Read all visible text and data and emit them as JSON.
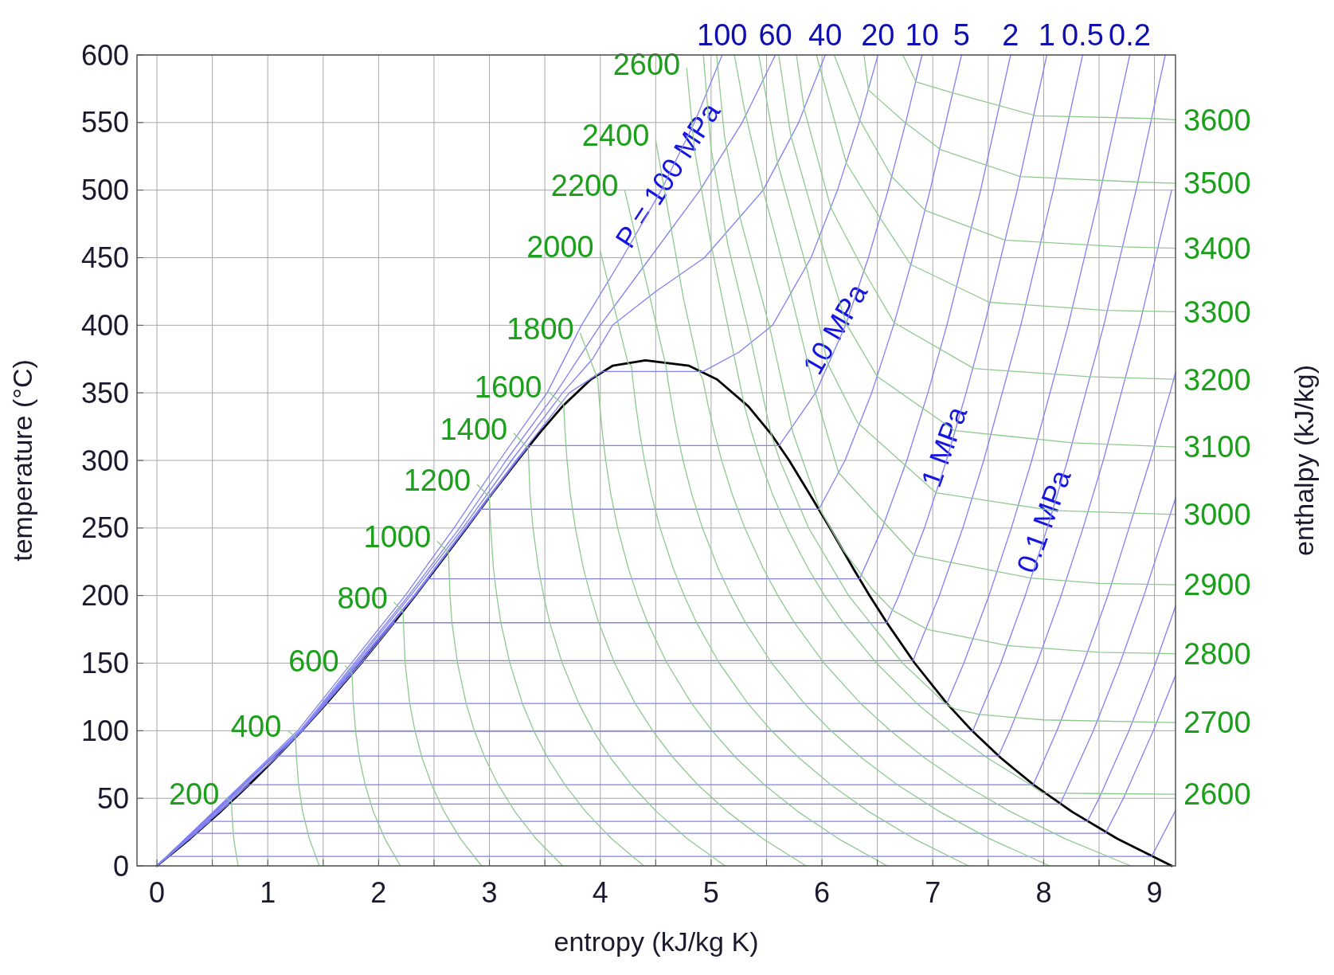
{
  "chart_data": {
    "type": "line",
    "xlabel": "entropy (kJ/kg K)",
    "ylabel": "temperature (°C)",
    "y2label": "enthalpy (kJ/kg)",
    "xlim": [
      -0.18,
      9.19
    ],
    "ylim": [
      0,
      600
    ],
    "xticks": [
      0,
      {
        "value": 0.5,
        "label": null
      },
      1,
      {
        "value": 1.5,
        "label": null
      },
      2,
      {
        "value": 2.5,
        "label": null
      },
      3,
      {
        "value": 3.5,
        "label": null
      },
      4,
      {
        "value": 4.5,
        "label": null
      },
      5,
      {
        "value": 5.5,
        "label": null
      },
      6,
      {
        "value": 6.5,
        "label": null
      },
      7,
      {
        "value": 7.5,
        "label": null
      },
      8,
      {
        "value": 8.5,
        "label": null
      },
      9
    ],
    "yticks": [
      0,
      50,
      100,
      150,
      200,
      250,
      300,
      350,
      400,
      450,
      500,
      550,
      600
    ],
    "grid": true,
    "annotations": [
      "P = 100 MPa",
      "10 MPa",
      "1 MPa",
      "0.1 MPa"
    ],
    "series": [
      {
        "color": "#000000",
        "x": [
          0,
          0.297,
          0.572,
          0.831,
          1.075,
          1.307,
          1.528,
          1.842,
          2.139,
          2.331,
          2.517,
          2.793,
          3.019,
          3.255,
          3.449,
          3.659,
          3.915,
          4.111,
          4.407,
          4.801,
          5.053,
          5.336,
          5.537,
          5.704,
          5.89,
          6.072,
          6.283,
          6.43,
          6.585,
          6.837,
          7.129,
          7.354,
          7.612,
          7.909,
          8.257,
          8.666,
          9.156
        ],
        "values": [
          0,
          20,
          40,
          60,
          80,
          100,
          120,
          150,
          180,
          200,
          220,
          250,
          275,
          300,
          320,
          340,
          360,
          370,
          374,
          370,
          360,
          340,
          320,
          300,
          275,
          250,
          220,
          200,
          180,
          150,
          120,
          100,
          80,
          60,
          40,
          20,
          0
        ]
      },
      {
        "name": "100",
        "color": "#8080f4",
        "x": [
          0,
          1.27,
          2.24,
          2.68,
          3.09,
          3.52,
          3.83,
          4.2,
          4.55,
          4.85,
          5.1
        ],
        "values": [
          0,
          100,
          200,
          250,
          300,
          350,
          400,
          450,
          500,
          550,
          600
        ]
      },
      {
        "name": "60",
        "color": "#8080f4",
        "x": [
          0,
          1.29,
          2.27,
          2.73,
          3.15,
          3.6,
          4.0,
          4.45,
          4.9,
          5.28,
          5.58
        ],
        "values": [
          0,
          100,
          200,
          250,
          300,
          350,
          400,
          450,
          500,
          550,
          600
        ]
      },
      {
        "name": "40",
        "color": "#8080f4",
        "x": [
          0,
          1.3,
          2.29,
          2.76,
          3.2,
          3.66,
          3.93,
          4.11,
          4.5,
          4.94,
          5.47,
          5.79,
          6.03
        ],
        "values": [
          0,
          100,
          200,
          250,
          300,
          350,
          375,
          400,
          425,
          450,
          500,
          550,
          600
        ]
      },
      {
        "name": "20",
        "color": "#8080f4",
        "x": [
          0,
          1.3,
          2.32,
          2.78,
          3.24,
          3.72,
          4.015,
          4.927,
          5.25,
          5.554,
          5.902,
          6.14,
          6.335,
          6.505
        ],
        "values": [
          0,
          100,
          200,
          250,
          300,
          350,
          365.8,
          365.8,
          380,
          400,
          450,
          500,
          550,
          600
        ]
      },
      {
        "name": "10",
        "color": "#8080f4",
        "x": [
          0,
          1.305,
          2.32,
          2.79,
          3.25,
          3.36,
          5.614,
          5.943,
          6.213,
          6.419,
          6.597,
          6.756,
          6.903
        ],
        "values": [
          0,
          100,
          200,
          250,
          300,
          311,
          311,
          350,
          400,
          450,
          500,
          550,
          600
        ]
      },
      {
        "name": "5",
        "color": "#8080f4",
        "x": [
          0,
          1.307,
          2.33,
          2.79,
          2.921,
          5.973,
          6.208,
          6.449,
          6.646,
          6.819,
          6.976,
          7.259
        ],
        "values": [
          0,
          100,
          200,
          250,
          263.9,
          263.9,
          300,
          350,
          400,
          450,
          500,
          600
        ]
      },
      {
        "name": "2",
        "color": "#8080f4",
        "x": [
          0,
          1.307,
          2.33,
          2.447,
          6.34,
          6.545,
          6.766,
          6.956,
          7.127,
          7.432,
          7.702
        ],
        "values": [
          0,
          100,
          200,
          212.4,
          212.4,
          250,
          300,
          350,
          400,
          500,
          600
        ]
      },
      {
        "name": "1",
        "color": "#8080f4",
        "x": [
          0,
          1.307,
          1.842,
          2.139,
          6.585,
          6.694,
          6.925,
          7.123,
          7.301,
          7.465,
          7.762,
          8.029
        ],
        "values": [
          0,
          100,
          150,
          179.9,
          179.9,
          200,
          250,
          300,
          350,
          400,
          500,
          600
        ]
      },
      {
        "name": "0.5",
        "color": "#8080f4",
        "x": [
          0,
          1.307,
          1.842,
          1.861,
          6.821,
          7.059,
          7.271,
          7.46,
          7.794,
          8.087,
          8.352
        ],
        "values": [
          0,
          100,
          150,
          151.8,
          151.8,
          200,
          250,
          300,
          400,
          500,
          600
        ]
      },
      {
        "name": "0.2",
        "color": "#8080f4",
        "x": [
          0,
          1.307,
          1.528,
          7.127,
          7.28,
          7.507,
          7.709,
          7.893,
          8.222,
          8.513,
          8.777
        ],
        "values": [
          0,
          100,
          120.2,
          120.2,
          150,
          200,
          250,
          300,
          400,
          500,
          600
        ]
      },
      {
        "color": "#8080f4",
        "x": [
          0,
          1.075,
          1.303,
          7.359,
          7.614,
          7.834,
          8.033,
          8.216,
          8.543,
          8.834,
          9.098
        ],
        "values": [
          0,
          80,
          99.6,
          99.6,
          150,
          200,
          250,
          300,
          400,
          500,
          600
        ]
      },
      {
        "color": "#8080f4",
        "x": [
          0,
          1.075,
          1.091,
          7.593,
          7.695,
          7.94,
          8.158,
          8.356,
          8.538,
          8.864,
          9.155
        ],
        "values": [
          0,
          80,
          81.3,
          81.3,
          100,
          150,
          200,
          250,
          300,
          400,
          500
        ]
      },
      {
        "color": "#8080f4",
        "x": [
          0,
          0.832,
          7.907,
          8.12,
          8.36,
          8.58,
          8.77,
          8.96,
          9.14,
          9.19
        ],
        "values": [
          0,
          60.1,
          60.1,
          100,
          150,
          200,
          250,
          300,
          350,
          365
        ]
      },
      {
        "color": "#8080f4",
        "x": [
          0,
          0.649,
          8.149,
          8.173,
          8.449,
          8.689,
          8.905,
          9.102,
          9.19
        ],
        "values": [
          0,
          45.8,
          45.8,
          50,
          100,
          150,
          200,
          250,
          272
        ]
      },
      {
        "color": "#8080f4",
        "x": [
          0,
          0.476,
          8.394,
          8.5,
          8.77,
          9.01,
          9.19
        ],
        "values": [
          0,
          32.9,
          32.9,
          50,
          100,
          150,
          192
        ]
      },
      {
        "color": "#8080f4",
        "x": [
          0,
          0.354,
          8.558,
          8.72,
          8.99,
          9.19
        ],
        "values": [
          0,
          24.1,
          24.1,
          50,
          100,
          141
        ]
      },
      {
        "color": "#8080f4",
        "x": [
          0,
          0.106,
          8.975,
          9.19
        ],
        "values": [
          0,
          7,
          7,
          41
        ]
      },
      {
        "name": "200",
        "color": "#8fc98f",
        "x": [
          0.62,
          0.673,
          0.676,
          0.693,
          0.732
        ],
        "values": [
          50,
          47.8,
          40,
          20,
          0
        ]
      },
      {
        "name": "400",
        "color": "#8fc98f",
        "x": [
          1.18,
          1.25,
          1.259,
          1.278,
          1.315,
          1.375,
          1.465
        ],
        "values": [
          100,
          95.5,
          80,
          60,
          40,
          20,
          0
        ]
      },
      {
        "name": "600",
        "color": "#8fc98f",
        "x": [
          1.7,
          1.76,
          1.772,
          1.792,
          1.826,
          1.879,
          1.953,
          2.057,
          2.197
        ],
        "values": [
          148,
          142.5,
          120,
          100,
          80,
          60,
          40,
          20,
          0
        ]
      },
      {
        "name": "800",
        "color": "#8fc98f",
        "x": [
          2.14,
          2.22,
          2.239,
          2.281,
          2.328,
          2.392,
          2.479,
          2.592,
          2.739,
          2.929
        ],
        "values": [
          195,
          188,
          150,
          120,
          100,
          80,
          60,
          40,
          20,
          0
        ]
      },
      {
        "name": "1000",
        "color": "#8fc98f",
        "x": [
          2.53,
          2.63,
          2.644,
          2.662,
          2.712,
          2.79,
          2.864,
          2.959,
          3.079,
          3.231,
          3.421,
          3.661
        ],
        "values": [
          240,
          232,
          200,
          180,
          150,
          120,
          100,
          80,
          60,
          40,
          20,
          0
        ]
      },
      {
        "name": "1200",
        "color": "#8fc98f",
        "x": [
          2.89,
          3.0,
          3.011,
          3.036,
          3.066,
          3.103,
          3.184,
          3.298,
          3.4,
          3.525,
          3.68,
          3.87,
          4.103,
          4.393
        ],
        "values": [
          282,
          273,
          250,
          220,
          200,
          180,
          150,
          120,
          100,
          80,
          60,
          40,
          20,
          0
        ]
      },
      {
        "name": "1400",
        "color": "#8fc98f",
        "x": [
          3.22,
          3.35,
          3.366,
          3.393,
          3.442,
          3.489,
          3.544,
          3.657,
          3.807,
          3.936,
          4.091,
          4.28,
          4.509,
          4.786,
          5.125
        ],
        "values": [
          320,
          309,
          275,
          250,
          220,
          200,
          180,
          150,
          120,
          100,
          80,
          60,
          40,
          20,
          0
        ]
      },
      {
        "name": "1600",
        "color": "#8fc98f",
        "x": [
          3.53,
          3.67,
          3.683,
          3.7,
          3.73,
          3.775,
          3.848,
          3.912,
          3.986,
          4.129,
          4.316,
          4.473,
          4.658,
          4.88,
          5.148,
          5.468,
          5.857
        ],
        "values": [
          351,
          341,
          320,
          300,
          275,
          250,
          220,
          200,
          180,
          150,
          120,
          100,
          80,
          60,
          40,
          20,
          0
        ]
      },
      {
        "name": "1800",
        "color": "#8fc98f",
        "x": [
          3.82,
          3.977,
          3.995,
          4.02,
          4.049,
          4.095,
          4.157,
          4.254,
          4.334,
          4.427,
          4.602,
          4.825,
          5.009,
          5.224,
          5.481,
          5.786,
          6.15,
          6.589
        ],
        "values": [
          394,
          360,
          340,
          320,
          300,
          275,
          250,
          220,
          200,
          180,
          150,
          120,
          100,
          80,
          60,
          40,
          20,
          0
        ]
      },
      {
        "name": "2000",
        "color": "#8fc98f",
        "x": [
          4.0,
          4.25,
          4.281,
          4.293,
          4.322,
          4.357,
          4.398,
          4.46,
          4.54,
          4.659,
          4.757,
          4.868,
          5.074,
          5.333,
          5.545,
          5.791,
          6.081,
          6.425,
          6.832,
          7.322
        ],
        "values": [
          455,
          372,
          370,
          360,
          340,
          320,
          300,
          275,
          250,
          220,
          200,
          180,
          150,
          120,
          100,
          80,
          60,
          40,
          20,
          0
        ]
      },
      {
        "name": "2200",
        "color": "#8fc98f",
        "x": [
          4.22,
          4.45,
          4.592,
          4.609,
          4.649,
          4.694,
          4.747,
          4.825,
          4.922,
          5.065,
          5.179,
          5.31,
          5.547,
          5.842,
          6.081,
          6.357,
          6.681,
          7.064,
          7.514,
          8.054
        ],
        "values": [
          500,
          420,
          370,
          360,
          340,
          320,
          300,
          275,
          250,
          220,
          200,
          180,
          150,
          120,
          100,
          80,
          60,
          40,
          20,
          0
        ]
      },
      {
        "name": "2400",
        "color": "#8fc98f",
        "x": [
          4.5,
          4.75,
          4.9,
          4.925,
          4.975,
          5.031,
          5.095,
          5.19,
          5.304,
          5.471,
          5.602,
          5.751,
          6.019,
          6.351,
          6.617,
          6.924,
          7.282,
          7.703,
          8.197,
          8.786
        ],
        "values": [
          537,
          420,
          364,
          360,
          340,
          320,
          300,
          275,
          250,
          220,
          200,
          180,
          150,
          120,
          100,
          80,
          60,
          40,
          20,
          0
        ]
      },
      {
        "name": "2600",
        "color": "#8fc98f",
        "x": [
          4.78,
          4.85,
          5.0,
          5.15,
          5.302,
          5.368,
          5.444,
          5.554,
          5.686,
          5.876,
          6.024,
          6.192,
          6.492,
          6.859,
          7.153,
          7.49,
          7.882,
          7.99,
          8.5,
          9.19
        ],
        "values": [
          590,
          530,
          460,
          400,
          340,
          320,
          300,
          275,
          250,
          220,
          200,
          180,
          150,
          120,
          100,
          80,
          60,
          54,
          53.5,
          53
        ]
      },
      {
        "name": "2700",
        "color": "#8fc98f",
        "x": [
          4.93,
          5.0,
          5.15,
          5.37,
          5.54,
          5.62,
          5.88,
          6.24,
          6.728,
          7.114,
          7.2,
          7.42,
          8.0,
          9.19
        ],
        "values": [
          600,
          530,
          460,
          385,
          320,
          300,
          250,
          200,
          150,
          120,
          116,
          112,
          108,
          106
        ]
      },
      {
        "name": "2800",
        "color": "#8fc98f",
        "x": [
          5.05,
          5.12,
          5.26,
          5.53,
          5.74,
          5.98,
          6.18,
          6.45,
          6.64,
          6.95,
          7.67,
          8.5,
          9.19
        ],
        "values": [
          600,
          540,
          480,
          398,
          320,
          264,
          235,
          205,
          189,
          175,
          163,
          158,
          157
        ]
      },
      {
        "name": "2900",
        "color": "#8fc98f",
        "x": [
          5.21,
          5.3,
          5.47,
          5.72,
          5.94,
          6.15,
          6.83,
          7.88,
          8.5,
          9.19
        ],
        "values": [
          600,
          560,
          500,
          423,
          350,
          291,
          230,
          213,
          209,
          208
        ]
      },
      {
        "name": "3000",
        "color": "#8fc98f",
        "x": [
          5.43,
          5.6,
          5.87,
          6.05,
          6.32,
          7.03,
          8.08,
          9.19
        ],
        "values": [
          600,
          520,
          440,
          372,
          328,
          276,
          263,
          260
        ]
      },
      {
        "name": "3100",
        "color": "#8fc98f",
        "x": [
          5.61,
          5.72,
          5.98,
          6.22,
          6.5,
          7.2,
          8.26,
          9.19
        ],
        "values": [
          600,
          540,
          465,
          401,
          362,
          322,
          313,
          310
        ]
      },
      {
        "name": "3200",
        "color": "#8fc98f",
        "x": [
          5.77,
          5.84,
          6.08,
          6.38,
          6.65,
          7.37,
          8.41,
          9.19
        ],
        "values": [
          600,
          560,
          487,
          440,
          402,
          368,
          362,
          360
        ]
      },
      {
        "name": "3300",
        "color": "#8fc98f",
        "x": [
          5.95,
          6.22,
          6.52,
          6.8,
          7.51,
          8.56,
          9.19
        ],
        "values": [
          600,
          520,
          480,
          445,
          417,
          411,
          410
        ]
      },
      {
        "name": "3400",
        "color": "#8fc98f",
        "x": [
          6.11,
          6.34,
          6.63,
          6.93,
          7.65,
          8.71,
          9.19
        ],
        "values": [
          600,
          552,
          510,
          485,
          463,
          458,
          457
        ]
      },
      {
        "name": "3500",
        "color": "#8fc98f",
        "x": [
          6.38,
          6.42,
          6.75,
          7.07,
          7.79,
          8.85,
          9.19
        ],
        "values": [
          600,
          574,
          550,
          530,
          510,
          506,
          505
        ]
      },
      {
        "name": "3600",
        "color": "#8fc98f",
        "x": [
          6.73,
          6.85,
          7.18,
          7.93,
          8.98,
          9.19
        ],
        "values": [
          600,
          580,
          572,
          555,
          553,
          552
        ]
      }
    ]
  }
}
